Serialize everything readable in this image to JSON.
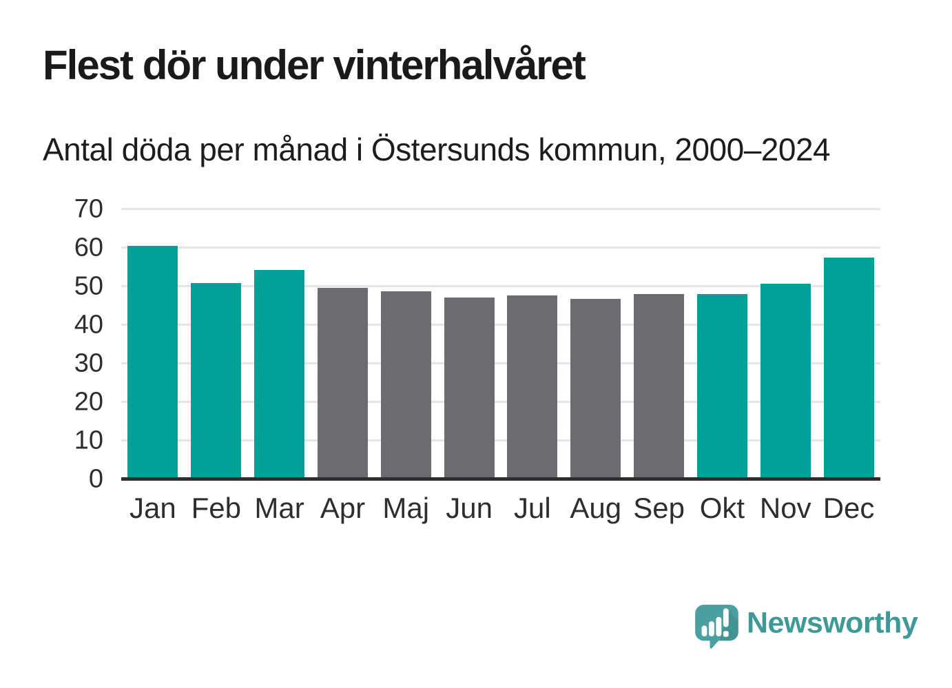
{
  "title": "Flest dör under vinterhalvåret",
  "subtitle": "Antal döda per månad i Östersunds kommun, 2000–2024",
  "chart_data": {
    "type": "bar",
    "categories": [
      "Jan",
      "Feb",
      "Mar",
      "Apr",
      "Maj",
      "Jun",
      "Jul",
      "Aug",
      "Sep",
      "Okt",
      "Nov",
      "Dec"
    ],
    "values": [
      60.5,
      50.9,
      54.3,
      49.6,
      48.8,
      47.1,
      47.7,
      46.8,
      48.0,
      48.0,
      50.8,
      57.5
    ],
    "bar_groups": [
      "winter",
      "winter",
      "winter",
      "summer",
      "summer",
      "summer",
      "summer",
      "summer",
      "summer",
      "winter",
      "winter",
      "winter"
    ],
    "group_colors": {
      "winter": "#00a098",
      "summer": "#6c6c70"
    },
    "title": "Flest dör under vinterhalvåret",
    "subtitle": "Antal döda per månad i Östersunds kommun, 2000–2024",
    "xlabel": "",
    "ylabel": "",
    "ylim": [
      0,
      70
    ],
    "yticks": [
      0,
      10,
      20,
      30,
      40,
      50,
      60,
      70
    ],
    "grid": true,
    "gridline_color": "#e4e4e4",
    "axis_line_color": "#2d2d2d",
    "legend": "none"
  },
  "branding": {
    "name": "Newsworthy",
    "text_color": "#3f9a97",
    "bubble_color": "#4aa0a1",
    "icon": "speech-bubble-bar-chart-icon"
  }
}
